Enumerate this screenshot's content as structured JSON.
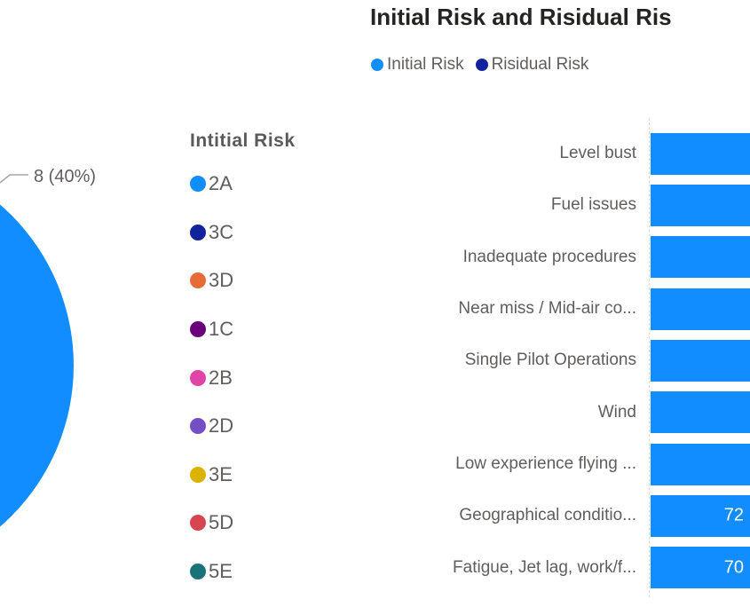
{
  "pie_chart": {
    "slice_label": "8 (40%)",
    "slice_color": "#118DFF",
    "legend_title": "Intitial Risk",
    "legend_items": [
      {
        "label": "2A",
        "color": "#118DFF"
      },
      {
        "label": "3C",
        "color": "#12239E"
      },
      {
        "label": "3D",
        "color": "#E66C37"
      },
      {
        "label": "1C",
        "color": "#6B007B"
      },
      {
        "label": "2B",
        "color": "#E044A7"
      },
      {
        "label": "2D",
        "color": "#744EC2"
      },
      {
        "label": "3E",
        "color": "#D9B300"
      },
      {
        "label": "5D",
        "color": "#D64550"
      },
      {
        "label": "5E",
        "color": "#197278"
      }
    ]
  },
  "bar_chart": {
    "title": "Initial Risk and Risidual Ris",
    "legend": [
      {
        "label": "Initial Risk",
        "color": "#118DFF"
      },
      {
        "label": "Risidual Risk",
        "color": "#12239E"
      }
    ],
    "rows": [
      {
        "label": "Level bust",
        "value": ""
      },
      {
        "label": "Fuel issues",
        "value": ""
      },
      {
        "label": "Inadequate procedures",
        "value": ""
      },
      {
        "label": "Near miss / Mid-air co...",
        "value": ""
      },
      {
        "label": "Single Pilot Operations",
        "value": ""
      },
      {
        "label": "Wind",
        "value": ""
      },
      {
        "label": "Low experience flying ...",
        "value": ""
      },
      {
        "label": "Geographical conditio...",
        "value": "72"
      },
      {
        "label": "Fatigue, Jet lag, work/f...",
        "value": "70"
      }
    ]
  },
  "chart_data": [
    {
      "type": "pie",
      "title": "",
      "legend_title": "Intitial Risk",
      "legend_position": "right",
      "categories": [
        "2A",
        "3C",
        "3D",
        "1C",
        "2B",
        "2D",
        "3E",
        "5D",
        "5E"
      ],
      "colors": [
        "#118DFF",
        "#12239E",
        "#E66C37",
        "#6B007B",
        "#E044A7",
        "#744EC2",
        "#D9B300",
        "#D64550",
        "#197278"
      ],
      "values": [
        8,
        null,
        null,
        null,
        null,
        null,
        null,
        null,
        null
      ],
      "annotations": [
        {
          "category": "2A",
          "label": "8 (40%)",
          "value": 8,
          "percent": 40
        }
      ],
      "layout": "pie partially clipped by left viewport edge; only the 2A slice area is visible"
    },
    {
      "type": "bar",
      "orientation": "horizontal",
      "title": "Initial Risk and Risidual Ris",
      "legend_position": "top",
      "categories": [
        "Level bust",
        "Fuel issues",
        "Inadequate procedures",
        "Near miss / Mid-air co...",
        "Single Pilot Operations",
        "Wind",
        "Low experience flying ...",
        "Geographical conditio...",
        "Fatigue, Jet lag, work/f..."
      ],
      "series": [
        {
          "name": "Initial Risk",
          "color": "#118DFF",
          "values": [
            null,
            null,
            null,
            null,
            null,
            null,
            null,
            72,
            70
          ]
        },
        {
          "name": "Risidual Risk",
          "color": "#12239E",
          "values": [
            null,
            null,
            null,
            null,
            null,
            null,
            null,
            null,
            null
          ]
        }
      ],
      "data_labels": "inside end, white; only 72 and 70 visible",
      "layout": "bars sorted descending and clipped by right viewport edge; dashed category axis line at bar start"
    }
  ]
}
